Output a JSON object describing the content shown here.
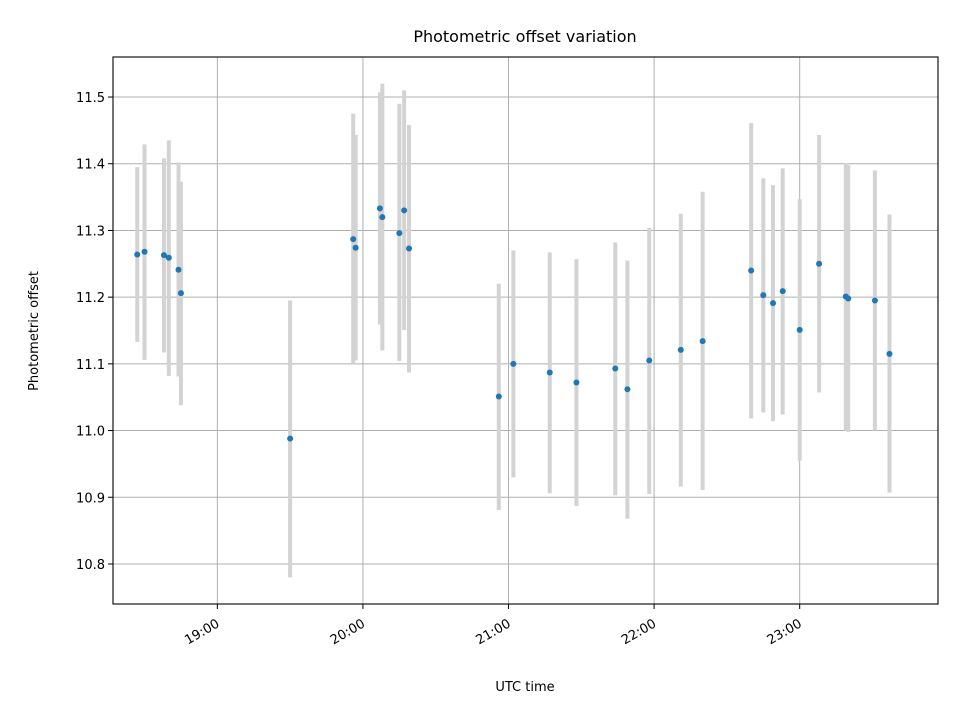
{
  "chart_data": {
    "type": "scatter",
    "title": "Photometric offset variation",
    "xlabel": "UTC time",
    "ylabel": "Photometric offset",
    "grid": true,
    "xlim": [
      "18:17",
      "23:57"
    ],
    "ylim": [
      10.74,
      11.56
    ],
    "x_ticks": [
      "19:00",
      "20:00",
      "21:00",
      "22:00",
      "23:00"
    ],
    "y_ticks": [
      "10.8",
      "10.9",
      "11.0",
      "11.1",
      "11.2",
      "11.3",
      "11.4",
      "11.5"
    ],
    "colors": {
      "points": "#1f77b4",
      "error_bars": "#d3d3d3",
      "grid": "#b0b0b0"
    },
    "series": [
      {
        "points": [
          {
            "x": "18:27",
            "y": 11.264,
            "ylo": 11.133,
            "yhi": 11.395
          },
          {
            "x": "18:30",
            "y": 11.268,
            "ylo": 11.106,
            "yhi": 11.429
          },
          {
            "x": "18:38",
            "y": 11.263,
            "ylo": 11.117,
            "yhi": 11.408
          },
          {
            "x": "18:40",
            "y": 11.259,
            "ylo": 11.082,
            "yhi": 11.435
          },
          {
            "x": "18:44",
            "y": 11.241,
            "ylo": 11.081,
            "yhi": 11.402
          },
          {
            "x": "18:45",
            "y": 11.206,
            "ylo": 11.038,
            "yhi": 11.373
          },
          {
            "x": "19:30",
            "y": 10.988,
            "ylo": 10.78,
            "yhi": 11.195
          },
          {
            "x": "19:56",
            "y": 11.287,
            "ylo": 11.1,
            "yhi": 11.475
          },
          {
            "x": "19:57",
            "y": 11.274,
            "ylo": 11.105,
            "yhi": 11.443
          },
          {
            "x": "20:07",
            "y": 11.333,
            "ylo": 11.159,
            "yhi": 11.507
          },
          {
            "x": "20:08",
            "y": 11.32,
            "ylo": 11.12,
            "yhi": 11.52
          },
          {
            "x": "20:15",
            "y": 11.296,
            "ylo": 11.104,
            "yhi": 11.49
          },
          {
            "x": "20:17",
            "y": 11.33,
            "ylo": 11.151,
            "yhi": 11.51
          },
          {
            "x": "20:19",
            "y": 11.273,
            "ylo": 11.087,
            "yhi": 11.458
          },
          {
            "x": "20:56",
            "y": 11.051,
            "ylo": 10.881,
            "yhi": 11.22
          },
          {
            "x": "21:02",
            "y": 11.1,
            "ylo": 10.93,
            "yhi": 11.27
          },
          {
            "x": "21:17",
            "y": 11.087,
            "ylo": 10.906,
            "yhi": 11.267
          },
          {
            "x": "21:28",
            "y": 11.072,
            "ylo": 10.887,
            "yhi": 11.257
          },
          {
            "x": "21:44",
            "y": 11.093,
            "ylo": 10.903,
            "yhi": 11.282
          },
          {
            "x": "21:49",
            "y": 11.062,
            "ylo": 10.868,
            "yhi": 11.255
          },
          {
            "x": "21:58",
            "y": 11.105,
            "ylo": 10.905,
            "yhi": 11.304
          },
          {
            "x": "22:11",
            "y": 11.121,
            "ylo": 10.916,
            "yhi": 11.325
          },
          {
            "x": "22:20",
            "y": 11.134,
            "ylo": 10.911,
            "yhi": 11.358
          },
          {
            "x": "22:40",
            "y": 11.24,
            "ylo": 11.018,
            "yhi": 11.461
          },
          {
            "x": "22:45",
            "y": 11.203,
            "ylo": 11.027,
            "yhi": 11.378
          },
          {
            "x": "22:49",
            "y": 11.191,
            "ylo": 11.014,
            "yhi": 11.368
          },
          {
            "x": "22:53",
            "y": 11.209,
            "ylo": 11.024,
            "yhi": 11.393
          },
          {
            "x": "23:00",
            "y": 11.151,
            "ylo": 10.955,
            "yhi": 11.347
          },
          {
            "x": "23:08",
            "y": 11.25,
            "ylo": 11.057,
            "yhi": 11.443
          },
          {
            "x": "23:19",
            "y": 11.201,
            "ylo": 11.0,
            "yhi": 11.401
          },
          {
            "x": "23:20",
            "y": 11.198,
            "ylo": 10.998,
            "yhi": 11.398
          },
          {
            "x": "23:31",
            "y": 11.195,
            "ylo": 11.0,
            "yhi": 11.39
          },
          {
            "x": "23:37",
            "y": 11.115,
            "ylo": 10.907,
            "yhi": 11.324
          }
        ]
      }
    ]
  }
}
